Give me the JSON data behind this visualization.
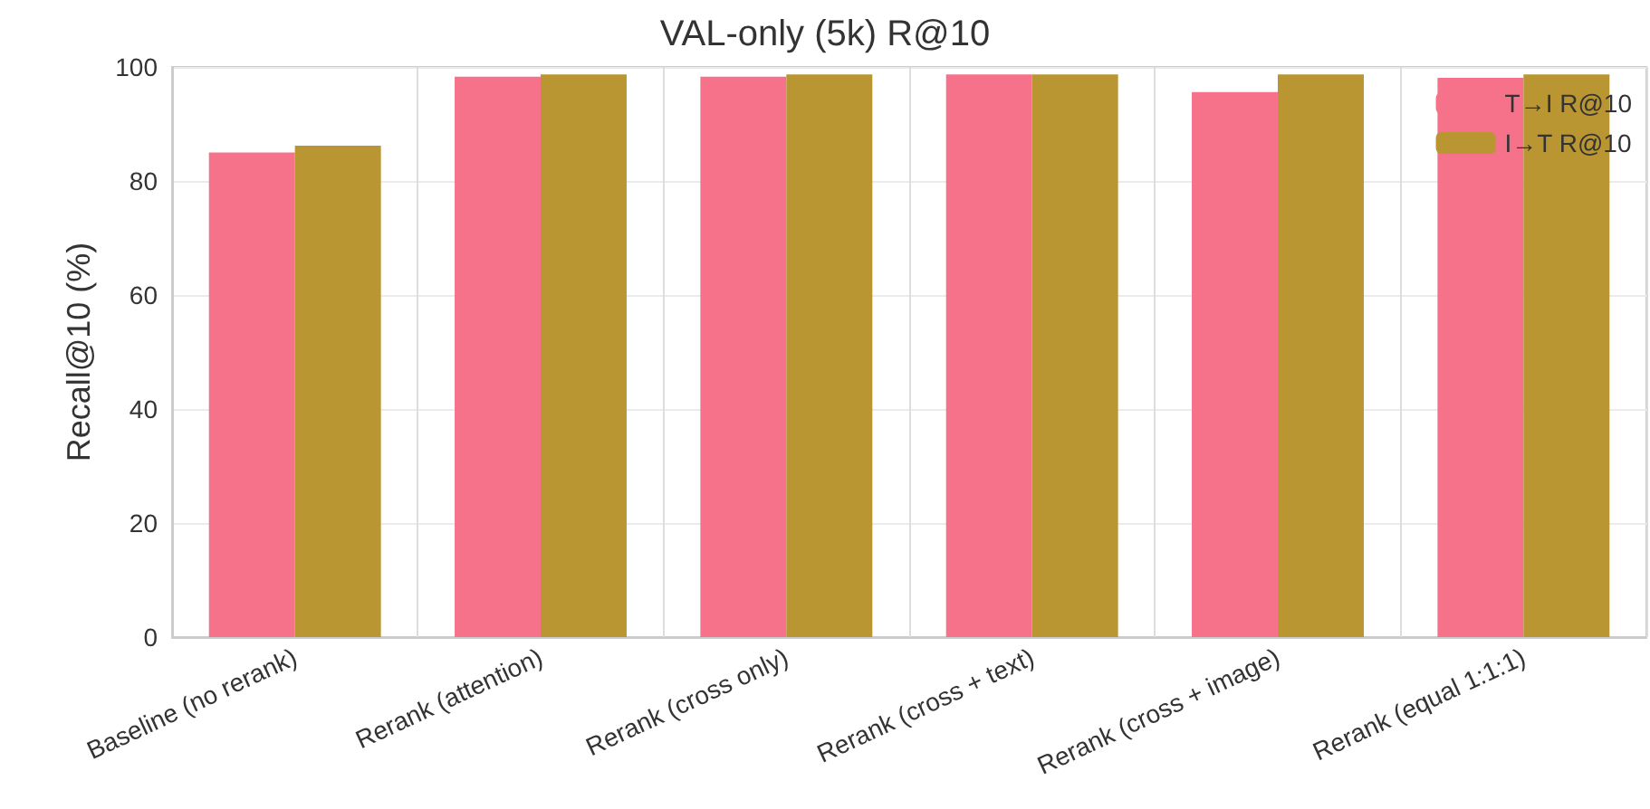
{
  "chart_data": {
    "type": "bar",
    "title": "VAL-only (5k) R@10",
    "ylabel": "Recall@10 (%)",
    "categories": [
      "Baseline (no rerank)",
      "Rerank (attention)",
      "Rerank (cross only)",
      "Rerank (cross + text)",
      "Rerank (cross + image)",
      "Rerank (equal 1:1:1)"
    ],
    "series": [
      {
        "name": "T→I R@10",
        "color": "#f5728a",
        "values": [
          85.0,
          98.3,
          98.3,
          98.7,
          95.6,
          98.1
        ]
      },
      {
        "name": "I→T R@10",
        "color": "#b99632",
        "values": [
          86.2,
          98.7,
          98.7,
          98.7,
          98.7,
          98.7
        ]
      }
    ],
    "ylim": [
      0,
      100
    ],
    "yticks": [
      0,
      20,
      40,
      60,
      80,
      100
    ],
    "grid": true,
    "legend": "top right"
  }
}
